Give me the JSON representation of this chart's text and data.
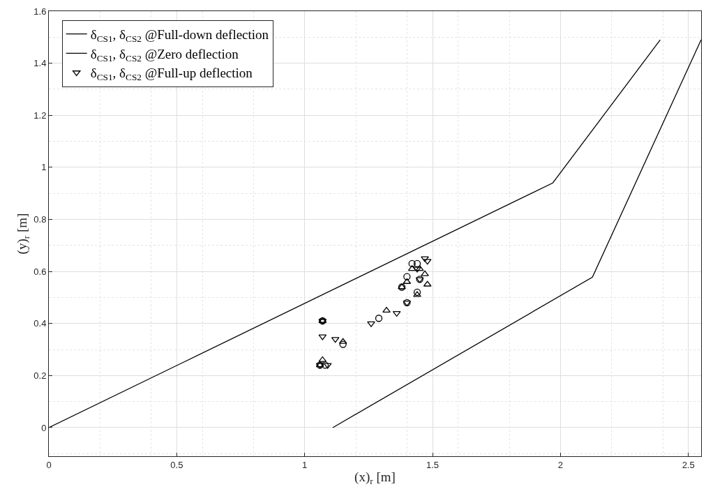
{
  "chart_data": {
    "type": "scatter",
    "xlabel": "(x)$_{r}$ [m]",
    "ylabel": "(y)$_{r}$ [m]",
    "xlim": [
      0,
      2.55
    ],
    "ylim": [
      -0.11,
      1.6
    ],
    "xticks": [
      0,
      0.5,
      1,
      1.5,
      2,
      2.5
    ],
    "yticks": [
      0,
      0.2,
      0.4,
      0.6,
      0.8,
      1,
      1.2,
      1.4,
      1.6
    ],
    "grid": true,
    "legend": "top left",
    "series": [
      {
        "name": "δ$_{CS1}$, δ$_{CS2}$ @Full-down deflection",
        "type": "line",
        "marker": "none",
        "line_style": "solid",
        "color": "#000000",
        "x": [
          0,
          1.97,
          2.39
        ],
        "values": [
          0,
          0.94,
          1.49
        ]
      },
      {
        "name": "δ$_{CS1}$, δ$_{CS2}$ @Zero deflection",
        "type": "line",
        "marker": "none",
        "line_style": "solid",
        "color": "#000000",
        "x": [
          1.11,
          2.125,
          2.55
        ],
        "values": [
          0,
          0.578,
          1.49
        ]
      },
      {
        "name": "δ$_{CS1}$, δ$_{CS2}$ @Full-up deflection",
        "type": "scatter",
        "marker": "triangle-down",
        "color": "#000000",
        "x": [
          1.07,
          1.07,
          1.12,
          1.26,
          1.36,
          1.4,
          1.45,
          1.47,
          1.48,
          1.44,
          1.06,
          1.09
        ],
        "values": [
          0.41,
          0.35,
          0.34,
          0.4,
          0.44,
          0.48,
          0.57,
          0.65,
          0.64,
          0.61,
          0.24,
          0.24
        ]
      },
      {
        "type": "scatter",
        "marker": "triangle",
        "color": "#000000",
        "x": [
          1.07,
          1.07,
          1.15,
          1.32,
          1.4,
          1.38,
          1.44,
          1.42,
          1.47,
          1.48,
          1.45,
          1.06
        ],
        "values": [
          0.41,
          0.26,
          0.33,
          0.45,
          0.56,
          0.54,
          0.51,
          0.61,
          0.59,
          0.55,
          0.61,
          0.24
        ]
      },
      {
        "type": "scatter",
        "marker": "circle",
        "color": "#000000",
        "x": [
          1.07,
          1.08,
          1.06,
          1.15,
          1.29,
          1.4,
          1.38,
          1.4,
          1.44,
          1.42,
          1.44,
          1.45
        ],
        "values": [
          0.41,
          0.24,
          0.24,
          0.32,
          0.42,
          0.58,
          0.54,
          0.48,
          0.52,
          0.63,
          0.63,
          0.57
        ]
      }
    ]
  }
}
